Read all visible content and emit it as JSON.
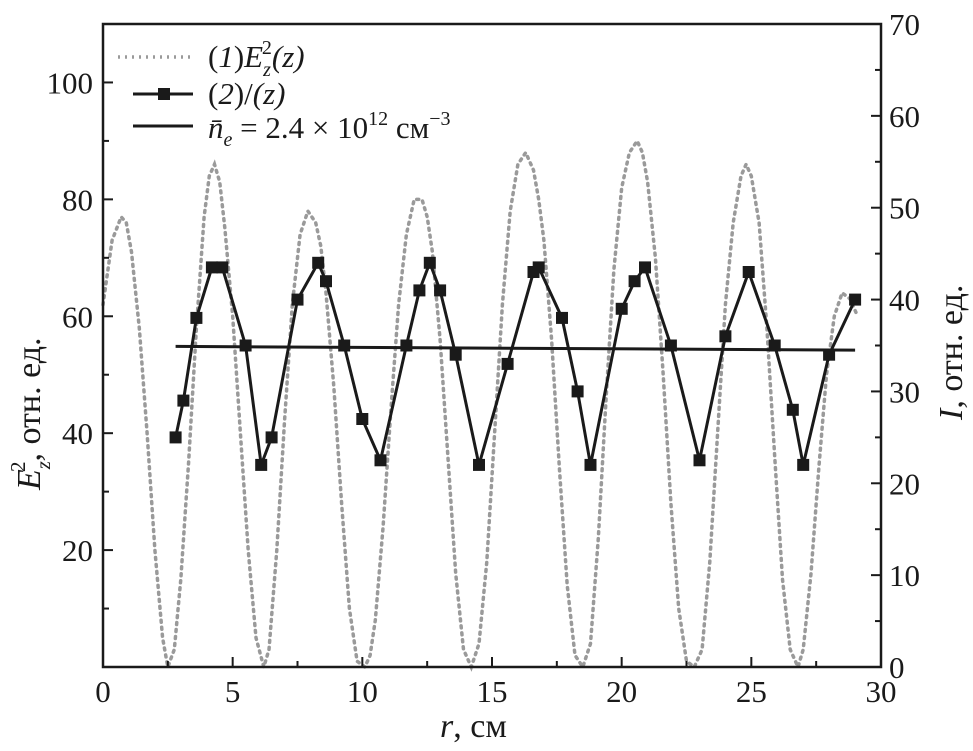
{
  "colors": {
    "ink": "#1a1a1a",
    "dotted_series": "#9a9a9a",
    "background": "#ffffff"
  },
  "chart_data": {
    "type": "line",
    "x_axis": {
      "label": "r",
      "unit": ", см",
      "range": [
        0,
        30
      ],
      "ticks": [
        0,
        5,
        10,
        15,
        20,
        25,
        30
      ]
    },
    "y_left_axis": {
      "label_main": "E",
      "label_sup": "2",
      "label_sub": "z",
      "label_rest": ", отн. ед.",
      "range": [
        0,
        110
      ],
      "ticks": [
        20,
        40,
        60,
        80,
        100
      ]
    },
    "y_right_axis": {
      "label_main": "I",
      "label_rest": ", отн. ед.",
      "range": [
        0,
        70
      ],
      "ticks": [
        0,
        10,
        20,
        30,
        40,
        50,
        60,
        70
      ]
    },
    "legend": {
      "placement": "top-left",
      "entries": [
        {
          "prefix": "(",
          "num": "1",
          "mid": ")",
          "main": "E",
          "sup": "2",
          "sub": "z",
          "tail": "(z)"
        },
        {
          "prefix": "(",
          "num": "2",
          "mid": ")",
          "main": "/",
          "sup": "",
          "sub": "",
          "tail": "(z)"
        },
        {
          "main": "n̄",
          "sub": "e",
          "tail": " = 2.4 × 10",
          "sup": "12",
          "unit": " см",
          "unit_sup": "−3"
        }
      ]
    },
    "grid": false,
    "series": [
      {
        "name": "(1)E²z(z)",
        "axis": "left",
        "style": "dotted",
        "x": [
          0,
          0.35,
          0.7,
          0.9,
          1.1,
          1.4,
          1.7,
          2.0,
          2.3,
          2.5,
          2.75,
          3.0,
          3.3,
          3.6,
          3.9,
          4.1,
          4.3,
          4.5,
          4.7,
          5.0,
          5.3,
          5.6,
          5.9,
          6.2,
          6.4,
          6.7,
          7.0,
          7.3,
          7.6,
          7.9,
          8.2,
          8.4,
          8.6,
          8.9,
          9.2,
          9.5,
          9.8,
          10.1,
          10.3,
          10.5,
          10.8,
          11.1,
          11.4,
          11.7,
          12.0,
          12.3,
          12.5,
          12.7,
          13.0,
          13.3,
          13.6,
          13.9,
          14.2,
          14.5,
          14.8,
          15.1,
          15.4,
          15.7,
          16.0,
          16.3,
          16.6,
          16.8,
          17.0,
          17.3,
          17.6,
          17.9,
          18.2,
          18.5,
          18.8,
          19.1,
          19.4,
          19.7,
          20.0,
          20.3,
          20.6,
          20.8,
          21.0,
          21.3,
          21.6,
          21.9,
          22.2,
          22.5,
          22.8,
          23.1,
          23.4,
          23.7,
          24.0,
          24.3,
          24.6,
          24.8,
          25.0,
          25.3,
          25.6,
          25.9,
          26.2,
          26.5,
          26.8,
          27.0,
          27.3,
          27.6,
          27.9,
          28.2,
          28.5,
          28.8,
          29.1
        ],
        "y": [
          62,
          73,
          77,
          76,
          71,
          58,
          40,
          20,
          5,
          0,
          3,
          15,
          35,
          58,
          77,
          84,
          86,
          83,
          75,
          60,
          40,
          20,
          5,
          0,
          3,
          20,
          42,
          62,
          74,
          78,
          76,
          72,
          64,
          48,
          28,
          10,
          1,
          0,
          2,
          8,
          24,
          44,
          62,
          74,
          80,
          80,
          77,
          71,
          56,
          36,
          16,
          3,
          0,
          4,
          18,
          40,
          62,
          78,
          86,
          88,
          85,
          80,
          73,
          56,
          34,
          14,
          2,
          0,
          4,
          22,
          46,
          68,
          82,
          88,
          90,
          88,
          83,
          70,
          50,
          28,
          10,
          1,
          0,
          3,
          18,
          40,
          62,
          76,
          84,
          86,
          84,
          76,
          58,
          36,
          15,
          3,
          0,
          3,
          16,
          34,
          50,
          60,
          64,
          63,
          60
        ]
      },
      {
        "name": "(2)/(z)",
        "axis": "right",
        "style": "line-square-markers",
        "x": [
          2.8,
          3.1,
          3.6,
          4.2,
          4.6,
          5.5,
          6.1,
          6.5,
          7.5,
          8.3,
          8.6,
          9.3,
          10.0,
          10.7,
          11.7,
          12.2,
          12.6,
          13.0,
          13.6,
          14.5,
          15.6,
          16.6,
          16.8,
          17.7,
          18.3,
          18.8,
          20.0,
          20.5,
          20.9,
          21.9,
          23.0,
          24.0,
          24.9,
          25.9,
          26.6,
          27.0,
          28.0,
          29.0
        ],
        "y": [
          25,
          29,
          38,
          43.5,
          43.5,
          35,
          22,
          25,
          40,
          44,
          42,
          35,
          27,
          22.5,
          35,
          41,
          44,
          41,
          34,
          22,
          33,
          43,
          43.5,
          38,
          30,
          22,
          39,
          42,
          43.5,
          35,
          22.5,
          36,
          43,
          35,
          28,
          22,
          34,
          40
        ]
      },
      {
        "name": "n̄e = 2.4 × 10¹² см⁻³",
        "axis": "right",
        "style": "solid",
        "x": [
          2.8,
          29.0
        ],
        "y": [
          34.9,
          34.5
        ]
      }
    ]
  }
}
